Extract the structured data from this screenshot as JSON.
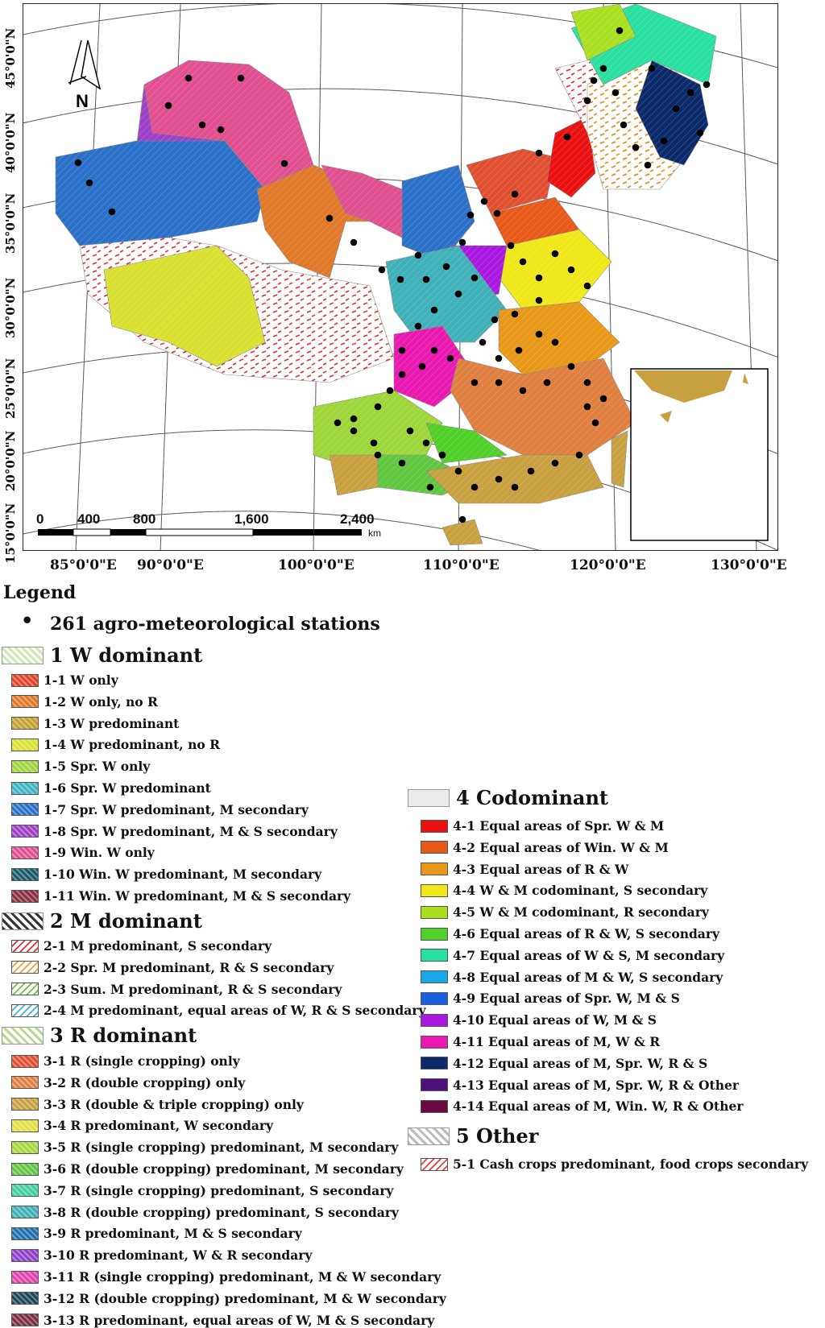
{
  "map": {
    "north_label": "N",
    "lat_labels": [
      "45°0'0\"N",
      "40°0'0\"N",
      "35°0'0\"N",
      "30°0'0\"N",
      "25°0'0\"N",
      "20°0'0\"N",
      "15°0'0\"N"
    ],
    "lon_labels": [
      "85°0'0\"E",
      "90°0'0\"E",
      "100°0'0\"E",
      "110°0'0\"E",
      "120°0'0\"E",
      "130°0'0\"E"
    ],
    "scale_numbers": [
      "0",
      "400",
      "800",
      "1,600",
      "2,400"
    ],
    "scale_unit": "km"
  },
  "legend": {
    "title": "Legend",
    "stations_bullet": "•",
    "stations_label": "261 agro-meteorological stations",
    "groups": [
      {
        "label": "1 W dominant",
        "color": "#cde8b0",
        "items": [
          {
            "label": "1-1 W only",
            "color": "#e0452a"
          },
          {
            "label": "1-2 W only, no R",
            "color": "#e07a2a"
          },
          {
            "label": "1-3 W predominant",
            "color": "#c8a030"
          },
          {
            "label": "1-4 W predominant, no R",
            "color": "#d8e030"
          },
          {
            "label": "1-5 Spr. W only",
            "color": "#9ed63a"
          },
          {
            "label": "1-6 Spr. W predominant",
            "color": "#3fb6c6"
          },
          {
            "label": "1-7 Spr. W predominant, M secondary",
            "color": "#2a70c8"
          },
          {
            "label": "1-8 Spr. W predominant, M & S secondary",
            "color": "#a040c8"
          },
          {
            "label": "1-9 Win. W only",
            "color": "#e05090"
          },
          {
            "label": "1-10 Win. W predominant, M secondary",
            "color": "#1a5a6a"
          },
          {
            "label": "1-11 Win. W predominant, M & S secondary",
            "color": "#8a3040"
          }
        ]
      },
      {
        "label": "2 M dominant",
        "color": "#333333",
        "items": [
          {
            "label": "2-1 M predominant, S secondary",
            "color": "#e03030"
          },
          {
            "label": "2-2 Spr. M predominant, R & S secondary",
            "color": "#f0a030"
          },
          {
            "label": "2-3 Sum. M predominant, R & S secondary",
            "color": "#70c040"
          },
          {
            "label": "2-4 M predominant, equal areas of W, R & S secondary",
            "color": "#40b0e0"
          }
        ]
      },
      {
        "label": "3 R dominant",
        "color": "#b8d890",
        "items": [
          {
            "label": "3-1 R (single cropping) only",
            "color": "#e05030"
          },
          {
            "label": "3-2 R (double cropping) only",
            "color": "#e08040"
          },
          {
            "label": "3-3 R (double & triple cropping) only",
            "color": "#c8a040"
          },
          {
            "label": "3-4 R predominant, W secondary",
            "color": "#e0e040"
          },
          {
            "label": "3-5 R (single cropping) predominant, M secondary",
            "color": "#a8d840"
          },
          {
            "label": "3-6 R (double cropping) predominant, M secondary",
            "color": "#60c840"
          },
          {
            "label": "3-7 R (single cropping) predominant, S secondary",
            "color": "#40d0a0"
          },
          {
            "label": "3-8 R (double cropping) predominant, S secondary",
            "color": "#40b0b8"
          },
          {
            "label": "3-9 R predominant, M & S secondary",
            "color": "#2070b0"
          },
          {
            "label": "3-10 R predominant, W & R secondary",
            "color": "#9040c8"
          },
          {
            "label": "3-11 R (single cropping) predominant, M & W secondary",
            "color": "#e040b0"
          },
          {
            "label": "3-12 R (double cropping) predominant, M & W secondary",
            "color": "#1a4a5a"
          },
          {
            "label": "3-13 R predominant, equal areas of W, M & S secondary",
            "color": "#7a3040"
          }
        ]
      },
      {
        "label": "4 Codominant",
        "color": "#ececea",
        "items": [
          {
            "label": "4-1 Equal areas of Spr. W & M",
            "color": "#e81010"
          },
          {
            "label": "4-2 Equal areas of Win. W & M",
            "color": "#e85818"
          },
          {
            "label": "4-3 Equal areas of R & W",
            "color": "#e89818"
          },
          {
            "label": "4-4 W & M codominant, S secondary",
            "color": "#f0e818"
          },
          {
            "label": "4-5 W & M codominant, R secondary",
            "color": "#a8e020"
          },
          {
            "label": "4-6 Equal areas of R & W, S secondary",
            "color": "#50d028"
          },
          {
            "label": "4-7 Equal areas of W & S, M secondary",
            "color": "#28e0a0"
          },
          {
            "label": "4-8 Equal areas of M & W, S secondary",
            "color": "#18a8e8"
          },
          {
            "label": "4-9 Equal areas of Spr. W, M & S",
            "color": "#1860e0"
          },
          {
            "label": "4-10 Equal areas of W, M & S",
            "color": "#a818e0"
          },
          {
            "label": "4-11 Equal areas of M, W & R",
            "color": "#e818b0"
          },
          {
            "label": "4-12 Equal areas of M, Spr. W, R & S",
            "color": "#0a2a6a"
          },
          {
            "label": "4-13 Equal areas of M, Spr. W, R & Other",
            "color": "#50107a"
          },
          {
            "label": "4-14 Equal areas of M, Win. W, R & Other",
            "color": "#6a0a40"
          }
        ]
      },
      {
        "label": "5 Other",
        "color": "#bbbbbb",
        "items": [
          {
            "label": "5-1 Cash crops predominant, food crops secondary",
            "color": "#e04040"
          }
        ]
      }
    ]
  }
}
